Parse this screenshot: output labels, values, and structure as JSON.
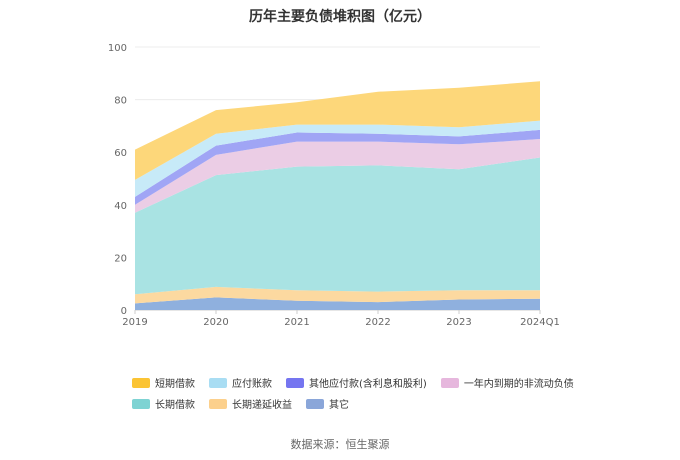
{
  "chart_data": {
    "type": "area",
    "stacked": true,
    "title": "历年主要负债堆积图（亿元）",
    "categories": [
      "2019",
      "2020",
      "2021",
      "2022",
      "2023",
      "2024Q1"
    ],
    "y_ticks": [
      "0",
      "20",
      "40",
      "60",
      "80",
      "100"
    ],
    "ylim": [
      0,
      100
    ],
    "grid": true,
    "legend_position": "bottom",
    "series": [
      {
        "name": "其它",
        "color": "#8FB0DE",
        "values": [
          2.5,
          4.8,
          3.5,
          3.0,
          4.0,
          4.3
        ]
      },
      {
        "name": "长期递延收益",
        "color": "#FCD9A0",
        "values": [
          3.5,
          4.0,
          4.0,
          4.0,
          3.5,
          3.2
        ]
      },
      {
        "name": "长期借款",
        "color": "#A9E3E3",
        "values": [
          31.0,
          42.5,
          47.0,
          48.0,
          46.0,
          50.5
        ]
      },
      {
        "name": "一年内到期的非流动负债",
        "color": "#EBCDE5",
        "values": [
          3.0,
          7.7,
          9.5,
          9.0,
          9.5,
          7.0
        ]
      },
      {
        "name": "其他应付款(含利息和股利)",
        "color": "#A0A5F5",
        "values": [
          3.0,
          3.5,
          3.5,
          3.0,
          3.0,
          3.5
        ]
      },
      {
        "name": "应付账款",
        "color": "#C7EAF8",
        "values": [
          6.5,
          4.5,
          3.0,
          3.5,
          3.5,
          3.5
        ]
      },
      {
        "name": "短期借款",
        "color": "#FDD77A",
        "values": [
          11.5,
          9.0,
          8.5,
          12.5,
          15.0,
          15.0
        ]
      }
    ]
  },
  "legend": {
    "items": [
      {
        "label": "短期借款",
        "color": "#FBC434"
      },
      {
        "label": "应付账款",
        "color": "#A9DDF3"
      },
      {
        "label": "其他应付款(含利息和股利)",
        "color": "#7575F0"
      },
      {
        "label": "一年内到期的非流动负债",
        "color": "#E6B7DD"
      },
      {
        "label": "长期借款",
        "color": "#7ED3D3"
      },
      {
        "label": "长期递延收益",
        "color": "#FCD08C"
      },
      {
        "label": "其它",
        "color": "#8AA6D9"
      }
    ]
  },
  "source": "数据来源：恒生聚源"
}
